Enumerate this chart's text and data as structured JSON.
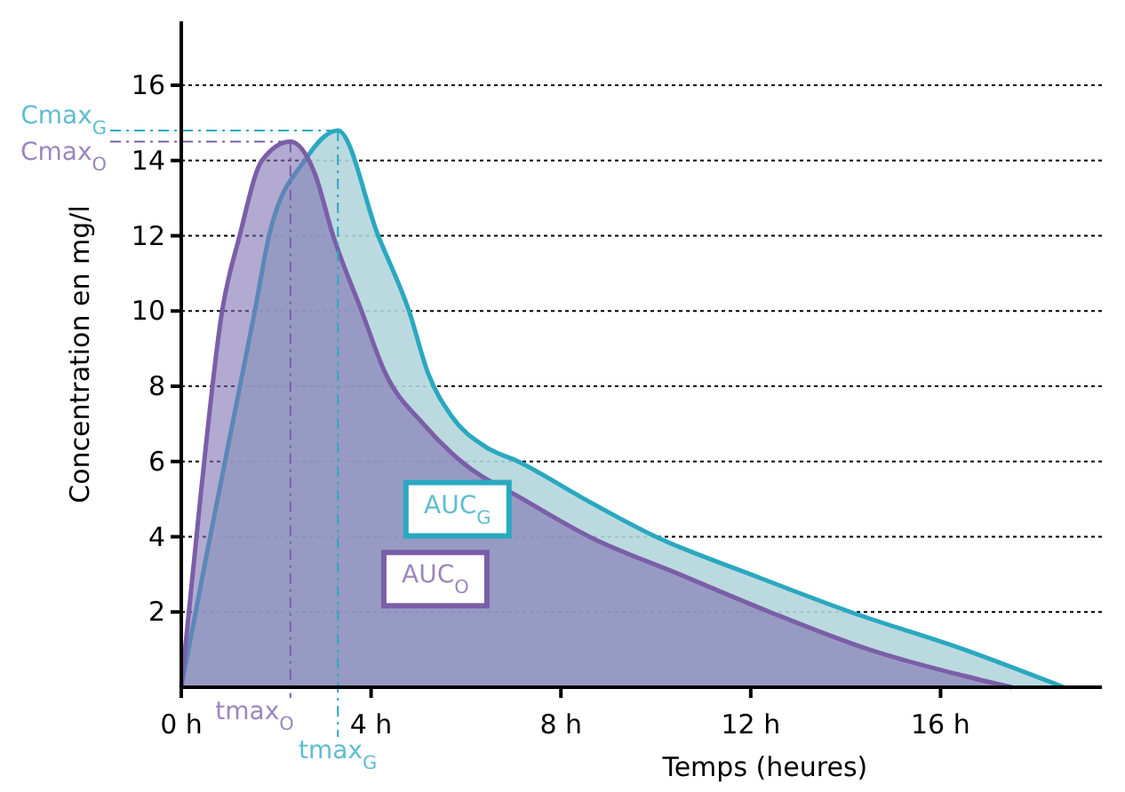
{
  "chart_data": {
    "type": "area",
    "xlabel": "Temps (heures)",
    "ylabel": "Concentration en mg/l",
    "xlim": [
      0,
      19.4
    ],
    "ylim": [
      0,
      17.7
    ],
    "xticks": [
      {
        "value": 0,
        "label": "0 h"
      },
      {
        "value": 4,
        "label": "4 h"
      },
      {
        "value": 8,
        "label": "8 h"
      },
      {
        "value": 12,
        "label": "12 h"
      },
      {
        "value": 16,
        "label": "16 h"
      }
    ],
    "yticks": [
      2,
      4,
      6,
      8,
      10,
      12,
      14,
      16
    ],
    "grid": "y",
    "marker": "none",
    "line_style": "solid",
    "series": [
      {
        "color": "#2aa8c0",
        "x": [
          0,
          0.5,
          1,
          1.55,
          1.85,
          2.6,
          3.3,
          4.15,
          4.8,
          5.2,
          5.7,
          6.4,
          7.1,
          8.5,
          10,
          12,
          14.1,
          16.5,
          18.6
        ],
        "values": [
          0,
          3.3,
          6.5,
          10,
          12,
          14,
          14.8,
          12,
          10,
          8.35,
          7.2,
          6.4,
          6,
          5,
          4,
          3,
          2,
          1,
          0
        ]
      },
      {
        "color": "#7b5ea8",
        "x": [
          0,
          0.4,
          0.86,
          1.23,
          1.7,
          2.3,
          2.8,
          3.2,
          3.8,
          4.3,
          5.1,
          5.9,
          7.2,
          8.6,
          10.5,
          12.4,
          14.5,
          16.5,
          17.5
        ],
        "values": [
          0,
          5,
          10,
          12,
          14,
          14.5,
          13.7,
          12,
          10,
          8.35,
          7,
          6,
          5,
          4,
          3,
          2,
          1,
          0.3,
          0
        ]
      }
    ],
    "ref_lines": [
      {
        "axis": "y",
        "value": 14.8,
        "label": "Cmax$_{G}$",
        "color": "#2aa8c0",
        "line_style": "dashed"
      },
      {
        "axis": "y",
        "value": 14.5,
        "label": "Cmax$_{O}$",
        "color": "#7b5ea8",
        "line_style": "dashed"
      },
      {
        "axis": "x",
        "value": 2.3,
        "label": "tmax$_{O}$",
        "color": "#7b5ea8",
        "line_style": "dashed"
      },
      {
        "axis": "x",
        "value": 3.3,
        "label": "tmax$_{G}$",
        "color": "#2aa8c0",
        "line_style": "dashed"
      }
    ],
    "annotations": [
      "AUC$_{G}$",
      "AUC$_{O}$"
    ]
  }
}
